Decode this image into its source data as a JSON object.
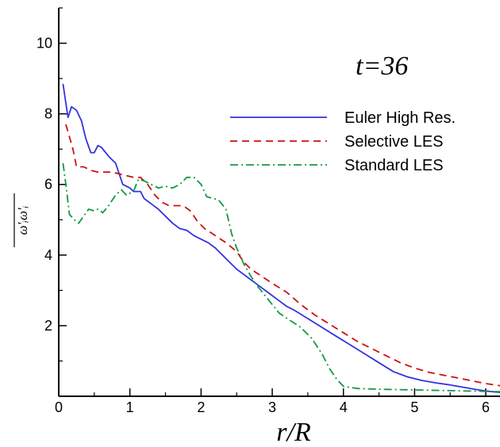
{
  "chart_data": {
    "type": "line",
    "title": "",
    "xlabel": "r/R",
    "ylabel": "ω'ᵢω'ᵢ",
    "xlim": [
      0,
      6.2
    ],
    "ylim": [
      0,
      11
    ],
    "x_ticks": [
      0,
      1,
      2,
      3,
      4,
      5,
      6
    ],
    "y_ticks": [
      2,
      4,
      6,
      8,
      10
    ],
    "grid": false,
    "legend_position": "upper-right",
    "annotation": "t=36",
    "series": [
      {
        "name": "Euler High Res.",
        "color": "#3333dd",
        "dash": "solid",
        "points": [
          [
            0.06,
            8.85
          ],
          [
            0.1,
            8.3
          ],
          [
            0.13,
            7.9
          ],
          [
            0.18,
            8.2
          ],
          [
            0.25,
            8.1
          ],
          [
            0.32,
            7.8
          ],
          [
            0.38,
            7.3
          ],
          [
            0.45,
            6.9
          ],
          [
            0.5,
            6.9
          ],
          [
            0.55,
            7.1
          ],
          [
            0.6,
            7.05
          ],
          [
            0.7,
            6.8
          ],
          [
            0.8,
            6.6
          ],
          [
            0.85,
            6.3
          ],
          [
            0.9,
            6.0
          ],
          [
            1.0,
            5.9
          ],
          [
            1.05,
            5.8
          ],
          [
            1.15,
            5.8
          ],
          [
            1.2,
            5.6
          ],
          [
            1.3,
            5.45
          ],
          [
            1.4,
            5.3
          ],
          [
            1.5,
            5.1
          ],
          [
            1.6,
            4.9
          ],
          [
            1.7,
            4.75
          ],
          [
            1.8,
            4.7
          ],
          [
            1.9,
            4.55
          ],
          [
            2.0,
            4.45
          ],
          [
            2.1,
            4.35
          ],
          [
            2.2,
            4.2
          ],
          [
            2.3,
            4.0
          ],
          [
            2.4,
            3.8
          ],
          [
            2.5,
            3.6
          ],
          [
            2.6,
            3.45
          ],
          [
            2.7,
            3.3
          ],
          [
            2.8,
            3.15
          ],
          [
            2.9,
            3.0
          ],
          [
            3.0,
            2.85
          ],
          [
            3.1,
            2.7
          ],
          [
            3.2,
            2.55
          ],
          [
            3.3,
            2.45
          ],
          [
            3.5,
            2.2
          ],
          [
            3.7,
            1.95
          ],
          [
            3.9,
            1.7
          ],
          [
            4.1,
            1.45
          ],
          [
            4.3,
            1.2
          ],
          [
            4.5,
            0.95
          ],
          [
            4.7,
            0.7
          ],
          [
            4.9,
            0.55
          ],
          [
            5.1,
            0.45
          ],
          [
            5.3,
            0.38
          ],
          [
            5.5,
            0.32
          ],
          [
            5.7,
            0.25
          ],
          [
            5.9,
            0.18
          ],
          [
            6.05,
            0.14
          ],
          [
            6.2,
            0.11
          ]
        ]
      },
      {
        "name": "Selective LES",
        "color": "#cc1111",
        "dash": "dashed",
        "points": [
          [
            0.1,
            7.7
          ],
          [
            0.2,
            7.0
          ],
          [
            0.25,
            6.5
          ],
          [
            0.35,
            6.5
          ],
          [
            0.45,
            6.4
          ],
          [
            0.55,
            6.35
          ],
          [
            0.65,
            6.35
          ],
          [
            0.75,
            6.35
          ],
          [
            0.85,
            6.3
          ],
          [
            0.95,
            6.25
          ],
          [
            1.05,
            6.2
          ],
          [
            1.15,
            6.2
          ],
          [
            1.25,
            6.0
          ],
          [
            1.35,
            5.7
          ],
          [
            1.45,
            5.5
          ],
          [
            1.55,
            5.4
          ],
          [
            1.65,
            5.4
          ],
          [
            1.75,
            5.4
          ],
          [
            1.85,
            5.25
          ],
          [
            1.95,
            4.95
          ],
          [
            2.05,
            4.75
          ],
          [
            2.2,
            4.55
          ],
          [
            2.35,
            4.35
          ],
          [
            2.5,
            4.1
          ],
          [
            2.6,
            3.8
          ],
          [
            2.7,
            3.6
          ],
          [
            2.85,
            3.4
          ],
          [
            3.0,
            3.2
          ],
          [
            3.2,
            2.95
          ],
          [
            3.4,
            2.6
          ],
          [
            3.6,
            2.3
          ],
          [
            3.8,
            2.05
          ],
          [
            4.0,
            1.8
          ],
          [
            4.2,
            1.55
          ],
          [
            4.4,
            1.35
          ],
          [
            4.6,
            1.15
          ],
          [
            4.8,
            0.95
          ],
          [
            5.0,
            0.8
          ],
          [
            5.2,
            0.68
          ],
          [
            5.4,
            0.6
          ],
          [
            5.6,
            0.52
          ],
          [
            5.8,
            0.44
          ],
          [
            6.0,
            0.36
          ],
          [
            6.2,
            0.3
          ]
        ]
      },
      {
        "name": "Standard LES",
        "color": "#119944",
        "dash": "dashdot",
        "points": [
          [
            0.06,
            6.6
          ],
          [
            0.1,
            6.0
          ],
          [
            0.15,
            5.15
          ],
          [
            0.22,
            5.0
          ],
          [
            0.28,
            4.9
          ],
          [
            0.35,
            5.1
          ],
          [
            0.42,
            5.3
          ],
          [
            0.5,
            5.25
          ],
          [
            0.55,
            5.3
          ],
          [
            0.62,
            5.2
          ],
          [
            0.7,
            5.4
          ],
          [
            0.8,
            5.7
          ],
          [
            0.88,
            5.85
          ],
          [
            0.95,
            5.7
          ],
          [
            1.05,
            5.8
          ],
          [
            1.12,
            6.15
          ],
          [
            1.2,
            6.1
          ],
          [
            1.3,
            6.0
          ],
          [
            1.4,
            5.9
          ],
          [
            1.5,
            5.95
          ],
          [
            1.6,
            5.9
          ],
          [
            1.7,
            6.0
          ],
          [
            1.8,
            6.2
          ],
          [
            1.9,
            6.2
          ],
          [
            2.0,
            6.0
          ],
          [
            2.08,
            5.65
          ],
          [
            2.18,
            5.6
          ],
          [
            2.25,
            5.55
          ],
          [
            2.35,
            5.3
          ],
          [
            2.43,
            4.6
          ],
          [
            2.5,
            4.2
          ],
          [
            2.6,
            3.75
          ],
          [
            2.7,
            3.4
          ],
          [
            2.8,
            3.1
          ],
          [
            2.9,
            2.85
          ],
          [
            3.0,
            2.6
          ],
          [
            3.1,
            2.35
          ],
          [
            3.25,
            2.15
          ],
          [
            3.4,
            1.95
          ],
          [
            3.55,
            1.65
          ],
          [
            3.7,
            1.2
          ],
          [
            3.8,
            0.8
          ],
          [
            3.9,
            0.5
          ],
          [
            4.0,
            0.28
          ],
          [
            4.2,
            0.22
          ],
          [
            4.5,
            0.2
          ],
          [
            5.0,
            0.18
          ],
          [
            5.5,
            0.16
          ],
          [
            6.0,
            0.14
          ],
          [
            6.2,
            0.13
          ]
        ]
      }
    ]
  }
}
